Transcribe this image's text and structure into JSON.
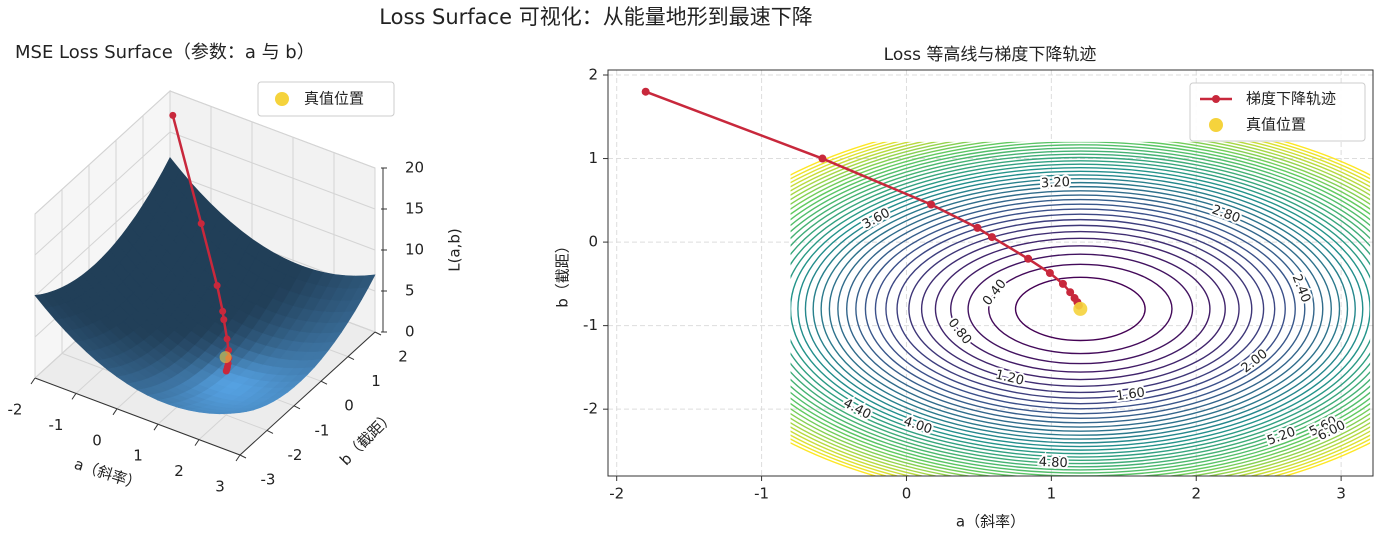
{
  "title": "Loss Surface 可视化：从能量地形到最速下降",
  "chart_data": [
    {
      "type": "surface3d",
      "title": "MSE Loss Surface（参数：a 与 b）",
      "xlabel": "a（斜率）",
      "ylabel": "b（截距）",
      "zlabel": "L(a,b)",
      "xlim": [
        -2,
        3
      ],
      "ylim": [
        -3,
        2
      ],
      "zlim": [
        0,
        20
      ],
      "xticks": [
        -2,
        -1,
        0,
        1,
        2,
        3
      ],
      "yticks": [
        -3,
        -2,
        -1,
        0,
        1,
        2
      ],
      "zticks": [
        0,
        5,
        10,
        15,
        20
      ],
      "surface_color": "#4a8cc4",
      "legend": "upper right",
      "series": [
        {
          "type": "line3d",
          "color": "#c8283c",
          "x": [
            -1.8,
            -0.58,
            0.17,
            0.49,
            0.59,
            0.84,
            0.99,
            1.08,
            1.13,
            1.16,
            1.18,
            1.19
          ],
          "y": [
            1.8,
            1.0,
            0.45,
            0.17,
            0.06,
            -0.2,
            -0.37,
            -0.5,
            -0.6,
            -0.67,
            -0.72,
            -0.76
          ],
          "z": [
            18,
            9.5,
            5,
            3.3,
            2.8,
            1.7,
            1.1,
            0.7,
            0.45,
            0.3,
            0.2,
            0.12
          ]
        },
        {
          "type": "scatter3d",
          "name": "真值位置",
          "color": "#f5d33c",
          "x": [
            1.2
          ],
          "y": [
            -0.8
          ],
          "z": [
            0
          ]
        }
      ]
    },
    {
      "type": "contour",
      "title": "Loss 等高线与梯度下降轨迹",
      "xlabel": "a（斜率）",
      "ylabel": "b（截距）",
      "xlim": [
        -2.06,
        3.22
      ],
      "ylim": [
        -2.8,
        2.06
      ],
      "xticks": [
        -2,
        -1,
        0,
        1,
        2,
        3
      ],
      "yticks": [
        -2,
        -1,
        0,
        1,
        2
      ],
      "grid": true,
      "legend": "upper right",
      "extent": [
        -0.8,
        3.2,
        -2.8,
        1.2
      ],
      "levels": [
        0.2,
        {
          "value": 0.4,
          "label": "0.40"
        },
        0.6,
        {
          "value": 0.8,
          "label": "0.80"
        },
        1.0,
        {
          "value": 1.2,
          "label": "1.20"
        },
        1.4,
        {
          "value": 1.6,
          "label": "1.60"
        },
        1.8,
        {
          "value": 2.0,
          "label": "2.00"
        },
        2.2,
        {
          "value": 2.4,
          "label": "2.40"
        },
        2.6,
        {
          "value": 2.8,
          "label": "2.80"
        },
        3.0,
        {
          "value": 3.2,
          "label": "3.20"
        },
        3.4,
        {
          "value": 3.6,
          "label": "3.60"
        },
        3.8,
        {
          "value": 4.0,
          "label": "4.00"
        },
        4.2,
        {
          "value": 4.4,
          "label": "4.40"
        },
        4.6,
        {
          "value": 4.8,
          "label": "4.80"
        },
        5.0,
        {
          "value": 5.2,
          "label": "5.20"
        },
        5.4,
        {
          "value": 5.6,
          "label": "5.60"
        },
        5.8,
        {
          "value": 6.0,
          "label": "6.00"
        },
        6.2,
        6.4,
        6.6,
        6.8,
        7.0,
        7.2,
        7.4,
        7.6
      ],
      "series": [
        {
          "type": "line",
          "name": "梯度下降轨迹",
          "color": "#c8283c",
          "x": [
            -1.8,
            -0.58,
            0.17,
            0.49,
            0.59,
            0.84,
            0.99,
            1.08,
            1.13,
            1.16,
            1.18,
            1.19
          ],
          "y": [
            1.8,
            1.0,
            0.45,
            0.17,
            0.06,
            -0.2,
            -0.37,
            -0.5,
            -0.6,
            -0.67,
            -0.72,
            -0.76
          ]
        },
        {
          "type": "scatter",
          "name": "真值位置",
          "color": "#f5d33c",
          "x": [
            1.2
          ],
          "y": [
            -0.8
          ]
        }
      ]
    }
  ]
}
